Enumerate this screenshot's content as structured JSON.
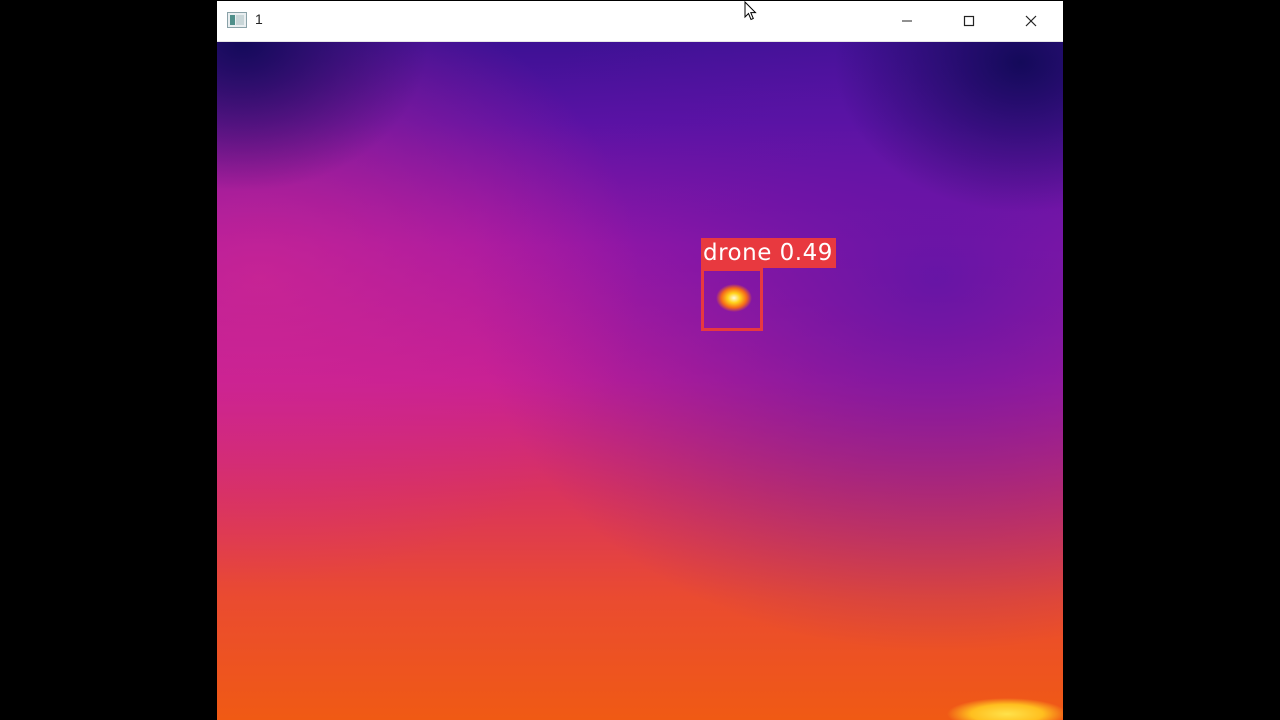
{
  "window": {
    "title": "1",
    "icon": "app-window-icon",
    "controls": {
      "minimize_icon": "minimize-icon",
      "maximize_icon": "maximize-icon",
      "close_icon": "close-icon"
    }
  },
  "frame": {
    "type": "thermal-camera-image",
    "palette": "inferno",
    "detection": {
      "label": "drone 0.49",
      "class": "drone",
      "confidence": 0.49,
      "box_color": "#e8393f"
    }
  },
  "colors": {
    "background": "#000000",
    "titlebar": "#ffffff",
    "detection": "#e8393f"
  }
}
